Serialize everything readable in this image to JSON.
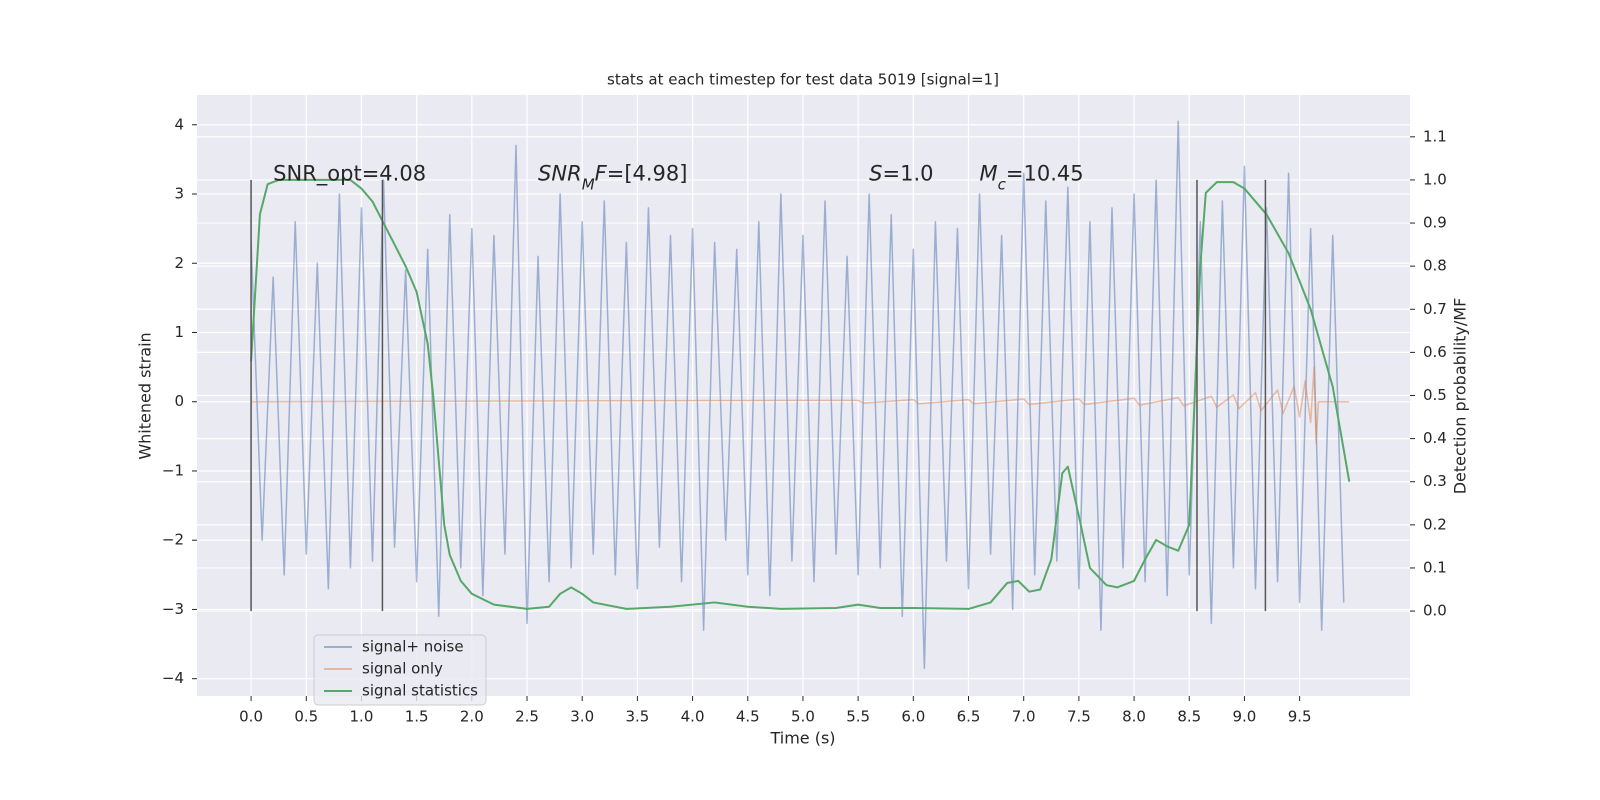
{
  "chart_data": {
    "type": "line",
    "title": "stats at each timestep for test data 5019 [signal=1]",
    "xlabel": "Time (s)",
    "ylabel": "Whitened strain",
    "y2label": "Detection probability/MF",
    "xlim": [
      -0.49,
      10.5
    ],
    "ylim": [
      -4.25,
      4.43
    ],
    "y2lim": [
      -0.197,
      1.197
    ],
    "xticks": [
      {
        "value": 0,
        "label": "0.0"
      },
      {
        "value": 0.5,
        "label": "0.5"
      },
      {
        "value": 1,
        "label": "1.0"
      },
      {
        "value": 1.5,
        "label": "1.5"
      },
      {
        "value": 2,
        "label": "2.0"
      },
      {
        "value": 2.5,
        "label": "2.5"
      },
      {
        "value": 3,
        "label": "3.0"
      },
      {
        "value": 3.5,
        "label": "3.5"
      },
      {
        "value": 4,
        "label": "4.0"
      },
      {
        "value": 4.5,
        "label": "4.5"
      },
      {
        "value": 5,
        "label": "5.0"
      },
      {
        "value": 5.5,
        "label": "5.5"
      },
      {
        "value": 6,
        "label": "6.0"
      },
      {
        "value": 6.5,
        "label": "6.5"
      },
      {
        "value": 7,
        "label": "7.0"
      },
      {
        "value": 7.5,
        "label": "7.5"
      },
      {
        "value": 8,
        "label": "8.0"
      },
      {
        "value": 8.5,
        "label": "8.5"
      },
      {
        "value": 9,
        "label": "9.0"
      },
      {
        "value": 9.5,
        "label": "9.5"
      }
    ],
    "yticks": [
      {
        "value": -4,
        "label": "−4"
      },
      {
        "value": -3,
        "label": "−3"
      },
      {
        "value": -2,
        "label": "−2"
      },
      {
        "value": -1,
        "label": "−1"
      },
      0,
      1,
      2,
      3,
      4
    ],
    "y2ticks": [
      {
        "value": 0,
        "label": "0.0"
      },
      {
        "value": 0.1,
        "label": "0.1"
      },
      {
        "value": 0.2,
        "label": "0.2"
      },
      {
        "value": 0.3,
        "label": "0.3"
      },
      {
        "value": 0.4,
        "label": "0.4"
      },
      {
        "value": 0.5,
        "label": "0.5"
      },
      {
        "value": 0.6,
        "label": "0.6"
      },
      {
        "value": 0.7,
        "label": "0.7"
      },
      {
        "value": 0.8,
        "label": "0.8"
      },
      {
        "value": 0.9,
        "label": "0.9"
      },
      {
        "value": 1.0,
        "label": "1.0"
      },
      {
        "value": 1.1,
        "label": "1.1"
      }
    ],
    "grid": true,
    "legend": "lower left",
    "vlines": {
      "x": [
        0,
        1.19,
        8.57,
        9.19
      ],
      "y2_range": [
        0,
        1
      ],
      "color": "#555555"
    },
    "annotations": [
      {
        "x": 0.2,
        "y": 3.31,
        "parts": [
          {
            "text": "SNR_opt=4.08"
          }
        ]
      },
      {
        "x": 2.6,
        "y": 3.31,
        "parts": [
          {
            "text": "SNR",
            "italic": true
          },
          {
            "text": "M",
            "italic": true,
            "sub": true
          },
          {
            "text": "F",
            "italic": true
          },
          {
            "text": "=[4.98]"
          }
        ]
      },
      {
        "x": 5.6,
        "y": 3.31,
        "parts": [
          {
            "text": "S",
            "italic": true
          },
          {
            "text": "=1.0"
          }
        ]
      },
      {
        "x": 6.6,
        "y": 3.31,
        "parts": [
          {
            "text": "M",
            "italic": true
          },
          {
            "text": "c",
            "italic": true,
            "sub": true
          },
          {
            "text": "=10.45"
          }
        ]
      }
    ],
    "series": [
      {
        "name": "signal+ noise",
        "color": "#4c72b0",
        "opacity": 0.5,
        "x": [
          0,
          0.1,
          0.2,
          0.3,
          0.4,
          0.5,
          0.6,
          0.7,
          0.8,
          0.9,
          1,
          1.1,
          1.2,
          1.3,
          1.4,
          1.5,
          1.6,
          1.7,
          1.8,
          1.9,
          2,
          2.1,
          2.2,
          2.3,
          2.4,
          2.5,
          2.6,
          2.7,
          2.8,
          2.9,
          3,
          3.1,
          3.2,
          3.3,
          3.4,
          3.5,
          3.6,
          3.7,
          3.8,
          3.9,
          4,
          4.1,
          4.2,
          4.3,
          4.4,
          4.5,
          4.6,
          4.7,
          4.8,
          4.9,
          5,
          5.1,
          5.2,
          5.3,
          5.4,
          5.5,
          5.6,
          5.7,
          5.8,
          5.9,
          6,
          6.1,
          6.2,
          6.3,
          6.4,
          6.5,
          6.6,
          6.7,
          6.8,
          6.9,
          7,
          7.1,
          7.2,
          7.3,
          7.4,
          7.5,
          7.6,
          7.7,
          7.8,
          7.9,
          8,
          8.1,
          8.2,
          8.3,
          8.4,
          8.5,
          8.6,
          8.7,
          8.8,
          8.9,
          9,
          9.1,
          9.2,
          9.3,
          9.4,
          9.5,
          9.6,
          9.7,
          9.8,
          9.9
        ],
        "values": [
          2.3,
          -2.0,
          1.8,
          -2.5,
          2.6,
          -2.2,
          2.0,
          -2.7,
          3.0,
          -2.4,
          2.8,
          -2.3,
          3.2,
          -2.1,
          1.9,
          -2.6,
          2.2,
          -3.1,
          2.7,
          -2.4,
          2.5,
          -2.8,
          2.4,
          -2.2,
          3.7,
          -3.2,
          2.1,
          -2.6,
          3.0,
          -2.4,
          2.6,
          -2.2,
          2.9,
          -2.5,
          2.3,
          -2.7,
          2.8,
          -2.1,
          2.4,
          -2.6,
          2.5,
          -3.3,
          2.3,
          -2.0,
          2.2,
          -2.5,
          2.6,
          -2.8,
          3.0,
          -2.3,
          2.4,
          -2.6,
          2.9,
          -2.2,
          2.1,
          -2.5,
          3.0,
          -2.4,
          2.7,
          -3.1,
          2.2,
          -3.85,
          2.6,
          -2.3,
          2.5,
          -2.7,
          3.0,
          -2.2,
          2.4,
          -3.0,
          3.3,
          -2.5,
          2.9,
          -2.3,
          3.1,
          -2.7,
          2.6,
          -3.3,
          2.8,
          -2.4,
          3.0,
          -2.6,
          3.2,
          -2.8,
          4.05,
          -2.5,
          2.6,
          -3.2,
          2.9,
          -2.4,
          3.4,
          -2.7,
          2.8,
          -2.6,
          3.3,
          -2.9,
          2.5,
          -3.3,
          2.4,
          -2.9
        ]
      },
      {
        "name": "signal only",
        "color": "#dd8452",
        "opacity": 0.5,
        "x": [
          0,
          5.0,
          5.5,
          5.55,
          6.0,
          6.05,
          6.5,
          6.55,
          7.0,
          7.05,
          7.5,
          7.55,
          8.0,
          8.05,
          8.4,
          8.45,
          8.7,
          8.75,
          8.9,
          8.95,
          9.1,
          9.15,
          9.3,
          9.35,
          9.45,
          9.5,
          9.55,
          9.6,
          9.63,
          9.65,
          9.67,
          9.95
        ],
        "values": [
          0,
          0.02,
          0.02,
          -0.02,
          0.03,
          -0.03,
          0.03,
          -0.03,
          0.04,
          -0.04,
          0.04,
          -0.04,
          0.05,
          -0.05,
          0.06,
          -0.06,
          0.08,
          -0.08,
          0.1,
          -0.1,
          0.13,
          -0.13,
          0.17,
          -0.17,
          0.22,
          -0.22,
          0.3,
          -0.3,
          0.5,
          -0.6,
          0,
          0
        ]
      },
      {
        "name": "signal statistics",
        "color": "#55a868",
        "axis": "y2",
        "x": [
          0,
          0.08,
          0.15,
          0.25,
          0.9,
          1.0,
          1.1,
          1.2,
          1.3,
          1.4,
          1.5,
          1.6,
          1.65,
          1.7,
          1.75,
          1.8,
          1.9,
          2.0,
          2.2,
          2.5,
          2.7,
          2.8,
          2.9,
          3.0,
          3.1,
          3.4,
          3.8,
          4.2,
          4.5,
          4.8,
          5.3,
          5.5,
          5.7,
          6.0,
          6.5,
          6.7,
          6.85,
          6.95,
          7.05,
          7.15,
          7.25,
          7.35,
          7.4,
          7.5,
          7.6,
          7.75,
          7.85,
          8.0,
          8.1,
          8.2,
          8.3,
          8.4,
          8.5,
          8.55,
          8.6,
          8.65,
          8.75,
          8.9,
          9.0,
          9.2,
          9.4,
          9.6,
          9.8,
          9.95
        ],
        "values": [
          0.58,
          0.92,
          0.99,
          1.0,
          1.0,
          0.98,
          0.95,
          0.9,
          0.85,
          0.8,
          0.74,
          0.62,
          0.5,
          0.35,
          0.2,
          0.13,
          0.07,
          0.04,
          0.015,
          0.005,
          0.01,
          0.04,
          0.055,
          0.04,
          0.02,
          0.005,
          0.01,
          0.02,
          0.01,
          0.005,
          0.007,
          0.015,
          0.007,
          0.007,
          0.005,
          0.02,
          0.065,
          0.07,
          0.045,
          0.05,
          0.12,
          0.32,
          0.335,
          0.22,
          0.1,
          0.06,
          0.055,
          0.07,
          0.12,
          0.165,
          0.15,
          0.14,
          0.2,
          0.5,
          0.8,
          0.97,
          0.995,
          0.995,
          0.98,
          0.92,
          0.83,
          0.7,
          0.52,
          0.3
        ]
      }
    ]
  }
}
